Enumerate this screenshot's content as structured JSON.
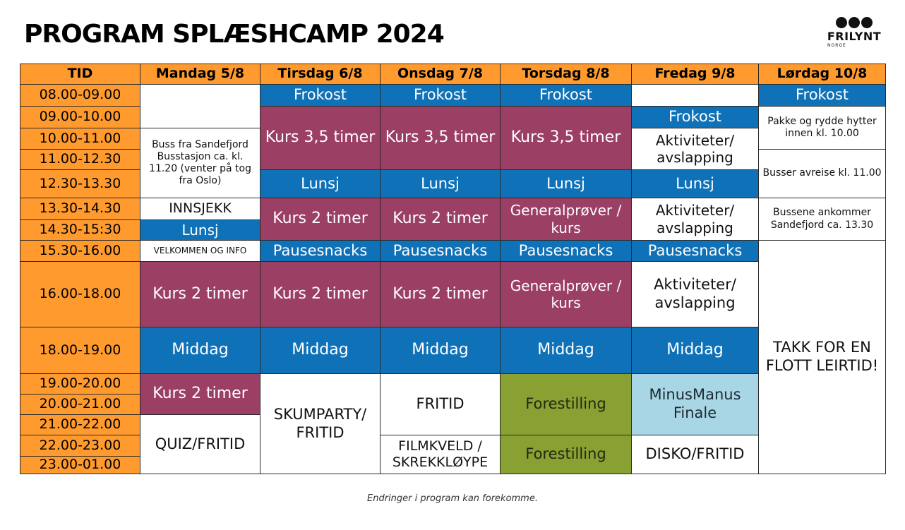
{
  "title": "PROGRAM SPLÆSHCAMP 2024",
  "logo": {
    "name": "FRILYNT",
    "sub": "NORGE"
  },
  "footer": "Endringer i program kan forekomme.",
  "colors": {
    "header": "#ff9a2e",
    "blue": "#0f72b8",
    "purple": "#9b3f64",
    "green": "#89a033",
    "lightblue": "#a9d6e5"
  },
  "headers": [
    "TID",
    "Mandag 5/8",
    "Tirsdag 6/8",
    "Onsdag 7/8",
    "Torsdag 8/8",
    "Fredag 9/8",
    "Lørdag 10/8"
  ],
  "times": [
    "08.00-09.00",
    "09.00-10.00",
    "10.00-11.00",
    "11.00-12.30",
    "12.30-13.30",
    "13.30-14.30",
    "14.30-15:30",
    "15.30-16.00",
    "16.00-18.00",
    "18.00-19.00",
    "19.00-20.00",
    "20.00-21.00",
    "21.00-22.00",
    "22.00-23.00",
    "23.00-01.00"
  ],
  "cells": [
    {
      "col": 1,
      "r0": 1,
      "r1": 2,
      "color": "w",
      "text": ""
    },
    {
      "col": 1,
      "r0": 3,
      "r1": 5,
      "color": "w",
      "text": "Buss fra Sandefjord Busstasjon ca. kl. 11.20 (venter på tog fra Oslo)",
      "size": "f14"
    },
    {
      "col": 1,
      "r0": 6,
      "r1": 6,
      "color": "w",
      "text": "INNSJEKK",
      "size": "f19"
    },
    {
      "col": 1,
      "r0": 7,
      "r1": 7,
      "color": "b",
      "text": "Lunsj",
      "size": "f20"
    },
    {
      "col": 1,
      "r0": 8,
      "r1": 8,
      "color": "w",
      "text": "VELKOMMEN OG INFO",
      "size": "f12"
    },
    {
      "col": 1,
      "r0": 9,
      "r1": 9,
      "color": "p",
      "text": "Kurs 2 timer",
      "size": "f22"
    },
    {
      "col": 1,
      "r0": 10,
      "r1": 10,
      "color": "b",
      "text": "Middag",
      "size": "f22"
    },
    {
      "col": 1,
      "r0": 11,
      "r1": 12,
      "color": "p",
      "text": "Kurs 2 timer",
      "size": "f22"
    },
    {
      "col": 1,
      "r0": 13,
      "r1": 15,
      "color": "w",
      "text": "QUIZ/FRITID",
      "size": "f21"
    },
    {
      "col": 2,
      "r0": 1,
      "r1": 1,
      "color": "b",
      "text": "Frokost",
      "size": "f21"
    },
    {
      "col": 2,
      "r0": 2,
      "r1": 4,
      "color": "p",
      "text": "Kurs 3,5 timer",
      "size": "f22"
    },
    {
      "col": 2,
      "r0": 5,
      "r1": 5,
      "color": "b",
      "text": "Lunsj",
      "size": "f21"
    },
    {
      "col": 2,
      "r0": 6,
      "r1": 7,
      "color": "p",
      "text": "Kurs 2 timer",
      "size": "f22"
    },
    {
      "col": 2,
      "r0": 8,
      "r1": 8,
      "color": "b",
      "text": "Pausesnacks",
      "size": "f21"
    },
    {
      "col": 2,
      "r0": 9,
      "r1": 9,
      "color": "p",
      "text": "Kurs 2 timer",
      "size": "f22"
    },
    {
      "col": 2,
      "r0": 10,
      "r1": 10,
      "color": "b",
      "text": "Middag",
      "size": "f22"
    },
    {
      "col": 2,
      "r0": 11,
      "r1": 15,
      "color": "w",
      "text": "SKUMPARTY/ FRITID",
      "size": "f21"
    },
    {
      "col": 3,
      "r0": 1,
      "r1": 1,
      "color": "b",
      "text": "Frokost",
      "size": "f21"
    },
    {
      "col": 3,
      "r0": 2,
      "r1": 4,
      "color": "p",
      "text": "Kurs 3,5 timer",
      "size": "f22"
    },
    {
      "col": 3,
      "r0": 5,
      "r1": 5,
      "color": "b",
      "text": "Lunsj",
      "size": "f21"
    },
    {
      "col": 3,
      "r0": 6,
      "r1": 7,
      "color": "p",
      "text": "Kurs 2 timer",
      "size": "f22"
    },
    {
      "col": 3,
      "r0": 8,
      "r1": 8,
      "color": "b",
      "text": "Pausesnacks",
      "size": "f21"
    },
    {
      "col": 3,
      "r0": 9,
      "r1": 9,
      "color": "p",
      "text": "Kurs 2 timer",
      "size": "f22"
    },
    {
      "col": 3,
      "r0": 10,
      "r1": 10,
      "color": "b",
      "text": "Middag",
      "size": "f22"
    },
    {
      "col": 3,
      "r0": 11,
      "r1": 13,
      "color": "w",
      "text": "FRITID",
      "size": "f21"
    },
    {
      "col": 3,
      "r0": 14,
      "r1": 15,
      "color": "w",
      "text": "FILMKVELD / SKREKKLØYPE",
      "size": "f19"
    },
    {
      "col": 4,
      "r0": 1,
      "r1": 1,
      "color": "b",
      "text": "Frokost",
      "size": "f21"
    },
    {
      "col": 4,
      "r0": 2,
      "r1": 4,
      "color": "p",
      "text": "Kurs 3,5 timer",
      "size": "f22"
    },
    {
      "col": 4,
      "r0": 5,
      "r1": 5,
      "color": "b",
      "text": "Lunsj",
      "size": "f21"
    },
    {
      "col": 4,
      "r0": 6,
      "r1": 7,
      "color": "p",
      "text": "Generalprøver / kurs",
      "size": "f20"
    },
    {
      "col": 4,
      "r0": 8,
      "r1": 8,
      "color": "b",
      "text": "Pausesnacks",
      "size": "f21"
    },
    {
      "col": 4,
      "r0": 9,
      "r1": 9,
      "color": "p",
      "text": "Generalprøver / kurs",
      "size": "f20"
    },
    {
      "col": 4,
      "r0": 10,
      "r1": 10,
      "color": "b",
      "text": "Middag",
      "size": "f22"
    },
    {
      "col": 4,
      "r0": 11,
      "r1": 13,
      "color": "g",
      "text": "Forestilling",
      "size": "f21"
    },
    {
      "col": 4,
      "r0": 14,
      "r1": 15,
      "color": "g",
      "text": "Forestilling",
      "size": "f21"
    },
    {
      "col": 5,
      "r0": 1,
      "r1": 1,
      "color": "w",
      "text": ""
    },
    {
      "col": 5,
      "r0": 2,
      "r1": 2,
      "color": "b",
      "text": "Frokost",
      "size": "f21"
    },
    {
      "col": 5,
      "r0": 3,
      "r1": 4,
      "color": "w",
      "text": "Aktiviteter/ avslapping",
      "size": "f20"
    },
    {
      "col": 5,
      "r0": 5,
      "r1": 5,
      "color": "b",
      "text": "Lunsj",
      "size": "f21"
    },
    {
      "col": 5,
      "r0": 6,
      "r1": 7,
      "color": "w",
      "text": "Aktiviteter/ avslapping",
      "size": "f20"
    },
    {
      "col": 5,
      "r0": 8,
      "r1": 8,
      "color": "b",
      "text": "Pausesnacks",
      "size": "f21"
    },
    {
      "col": 5,
      "r0": 9,
      "r1": 9,
      "color": "w",
      "text": "Aktiviteter/ avslapping",
      "size": "f21"
    },
    {
      "col": 5,
      "r0": 10,
      "r1": 10,
      "color": "b",
      "text": "Middag",
      "size": "f22"
    },
    {
      "col": 5,
      "r0": 11,
      "r1": 13,
      "color": "lb",
      "text": "MinusManus Finale",
      "size": "f21"
    },
    {
      "col": 5,
      "r0": 14,
      "r1": 15,
      "color": "w",
      "text": "DISKO/FRITID",
      "size": "f21"
    },
    {
      "col": 6,
      "r0": 1,
      "r1": 1,
      "color": "b",
      "text": "Frokost",
      "size": "f21"
    },
    {
      "col": 6,
      "r0": 2,
      "r1": 3,
      "color": "w",
      "text": "Pakke og rydde hytter innen kl. 10.00",
      "size": "f14"
    },
    {
      "col": 6,
      "r0": 4,
      "r1": 5,
      "color": "w",
      "text": "Busser avreise kl. 11.00",
      "size": "f14"
    },
    {
      "col": 6,
      "r0": 6,
      "r1": 7,
      "color": "w",
      "text": "Bussene ankommer Sandefjord ca. 13.30",
      "size": "f14"
    },
    {
      "col": 6,
      "r0": 8,
      "r1": 15,
      "color": "w",
      "text": "TAKK FOR EN FLOTT LEIRTID!",
      "size": "f21"
    }
  ]
}
